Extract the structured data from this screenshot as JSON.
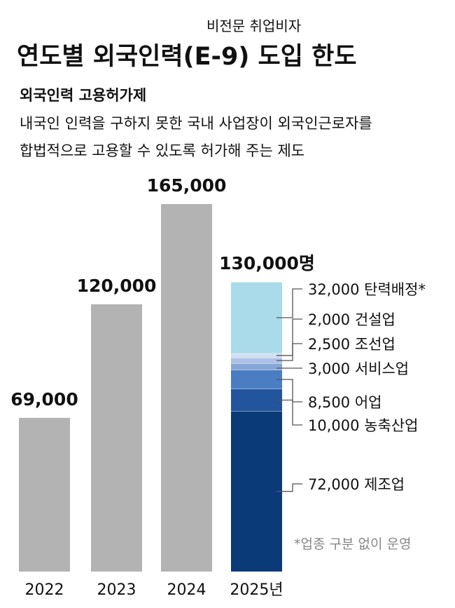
{
  "chart_data": {
    "type": "bar",
    "kicker": "비전문 취업비자",
    "title": "연도별 외국인력(E-9) 도입 한도",
    "subtitle": "외국인력 고용허가제",
    "description": [
      "내국인 인력을 구하지 못한 국내 사업장이 외국인근로자를",
      "합법적으로 고용할 수 있도록 허가해 주는 제도"
    ],
    "note": "*업종 구분 없이 운영",
    "categories": [
      "2022",
      "2023",
      "2024",
      "2025년"
    ],
    "values": [
      69000,
      120000,
      165000,
      130000
    ],
    "value_labels": [
      "69,000",
      "120,000",
      "165,000",
      "130,000명"
    ],
    "color": "#b3b3b3",
    "segments": [
      {
        "name": "제조업",
        "value": 72000,
        "value_label": "72,000",
        "color": "#0b3a78"
      },
      {
        "name": "농축산업",
        "value": 10000,
        "value_label": "10,000",
        "color": "#22559c"
      },
      {
        "name": "어업",
        "value": 8500,
        "value_label": "8,500",
        "color": "#4a7dc2"
      },
      {
        "name": "서비스업",
        "value": 3000,
        "value_label": "3,000",
        "color": "#86a6d8"
      },
      {
        "name": "조선업",
        "value": 2500,
        "value_label": "2,500",
        "color": "#adc2e6"
      },
      {
        "name": "건설업",
        "value": 2000,
        "value_label": "2,000",
        "color": "#d2def2"
      },
      {
        "name": "탄력배정*",
        "value": 32000,
        "value_label": "32,000",
        "color": "#a9dbea"
      }
    ]
  }
}
